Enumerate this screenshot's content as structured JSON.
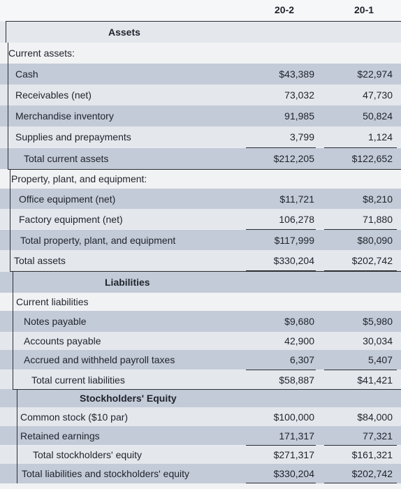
{
  "header": {
    "col1": "20-2",
    "col2": "20-1"
  },
  "sections": {
    "assets": "Assets",
    "liabilities": "Liabilities",
    "equity": "Stockholders' Equity"
  },
  "rows": [
    {
      "label": "Current assets:"
    },
    {
      "label": "Cash",
      "v1": "$43,389",
      "v2": "$22,974"
    },
    {
      "label": "Receivables (net)",
      "v1": "73,032",
      "v2": "47,730"
    },
    {
      "label": "Merchandise inventory",
      "v1": "91,985",
      "v2": "50,824"
    },
    {
      "label": "Supplies and prepayments",
      "v1": "3,799",
      "v2": "1,124"
    },
    {
      "label": "Total current assets",
      "v1": "$212,205",
      "v2": "$122,652"
    },
    {
      "label": "Property, plant, and equipment:"
    },
    {
      "label": "Office equipment (net)",
      "v1": "$11,721",
      "v2": "$8,210"
    },
    {
      "label": "Factory equipment (net)",
      "v1": "106,278",
      "v2": "71,880"
    },
    {
      "label": "Total property, plant, and equipment",
      "v1": "$117,999",
      "v2": "$80,090"
    },
    {
      "label": "Total assets",
      "v1": "$330,204",
      "v2": "$202,742"
    },
    {
      "label": "Current liabilities"
    },
    {
      "label": "Notes payable",
      "v1": "$9,680",
      "v2": "$5,980"
    },
    {
      "label": "Accounts payable",
      "v1": "42,900",
      "v2": "30,034"
    },
    {
      "label": "Accrued and withheld payroll taxes",
      "v1": "6,307",
      "v2": "5,407"
    },
    {
      "label": "Total current liabilities",
      "v1": "$58,887",
      "v2": "$41,421"
    },
    {
      "label": "Common stock ($10 par)",
      "v1": "$100,000",
      "v2": "$84,000"
    },
    {
      "label": "Retained earnings",
      "v1": "171,317",
      "v2": "77,321"
    },
    {
      "label": "Total stockholders' equity",
      "v1": "$271,317",
      "v2": "$161,321"
    },
    {
      "label": "Total liabilities and stockholders' equity",
      "v1": "$330,204",
      "v2": "$202,742"
    }
  ]
}
